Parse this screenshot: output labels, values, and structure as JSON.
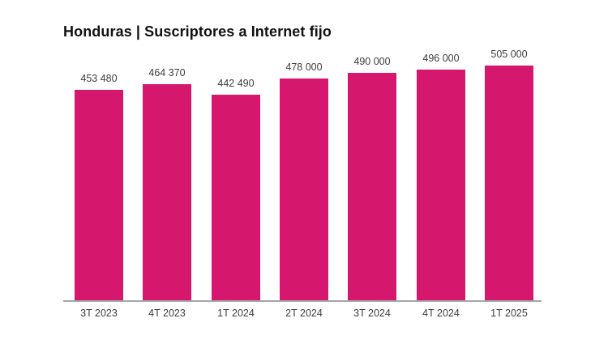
{
  "chart_data": {
    "type": "bar",
    "title": "Honduras | Suscriptores a Internet fijo",
    "categories": [
      "3T 2023",
      "4T 2023",
      "1T 2024",
      "2T 2024",
      "3T 2024",
      "4T 2024",
      "1T 2025"
    ],
    "values": [
      453480,
      464370,
      442490,
      478000,
      490000,
      496000,
      505000
    ],
    "value_labels": [
      "453 480",
      "464 370",
      "442 490",
      "478 000",
      "490 000",
      "496 000",
      "505 000"
    ],
    "xlabel": "",
    "ylabel": "",
    "ylim": [
      0,
      505000
    ],
    "grid": false,
    "legend": false,
    "colors": {
      "bar": "#d6176e",
      "title": "#111111",
      "labels": "#3d3d3d",
      "axis_line": "#a6a6a6",
      "background": "#ffffff"
    }
  }
}
